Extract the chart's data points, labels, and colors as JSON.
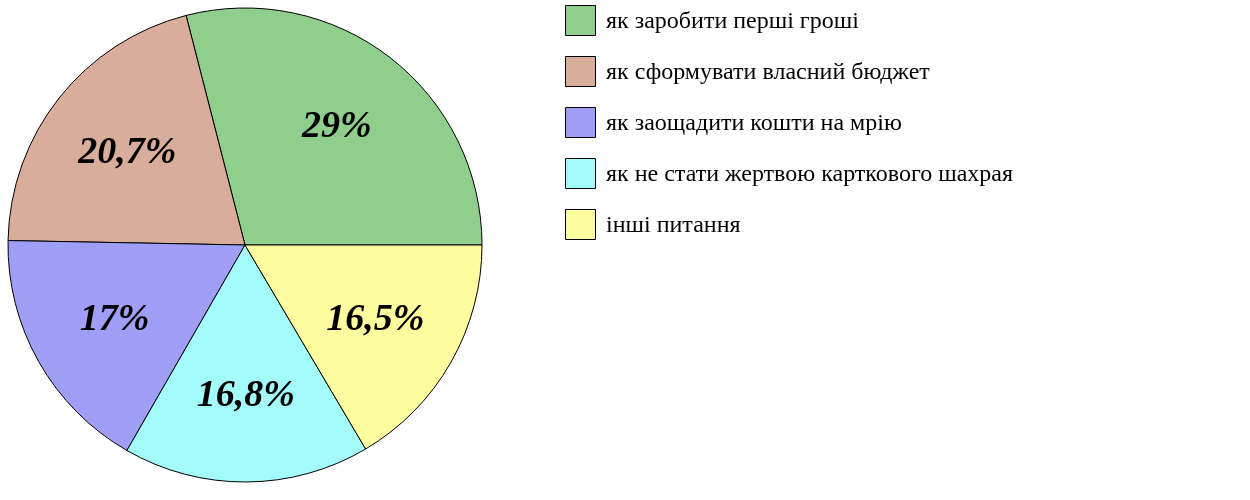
{
  "chart_data": {
    "type": "pie",
    "categories": [
      "як заробити перші гроші",
      "як сформувати власний бюджет",
      "як заощадити кошти на мрію",
      "як не стати жертвою карткового шахрая",
      "інші питання"
    ],
    "values": [
      29,
      20.7,
      17,
      16.8,
      16.5
    ],
    "colors": [
      "#8fce8c",
      "#d9ad9b",
      "#9f9ff7",
      "#a3fcfa",
      "#fdfd9f"
    ],
    "value_labels": [
      "29%",
      "20,7%",
      "17%",
      "16,8%",
      "16,5%"
    ],
    "legend": "right"
  }
}
